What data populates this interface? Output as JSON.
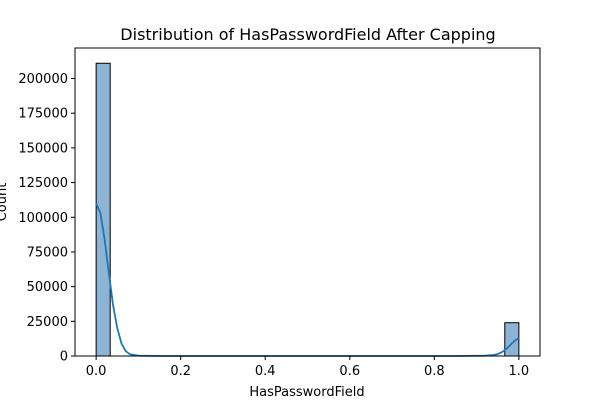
{
  "chart_data": {
    "type": "bar",
    "title": "Distribution of HasPasswordField After Capping",
    "xlabel": "HasPasswordField",
    "ylabel": "Count",
    "xlim": [
      -0.05,
      1.05
    ],
    "ylim": [
      0,
      222000
    ],
    "xticks": [
      0.0,
      0.2,
      0.4,
      0.6,
      0.8,
      1.0
    ],
    "xtick_labels": [
      "0.0",
      "0.2",
      "0.4",
      "0.6",
      "0.8",
      "1.0"
    ],
    "yticks": [
      0,
      25000,
      50000,
      75000,
      100000,
      125000,
      150000,
      175000,
      200000
    ],
    "ytick_labels": [
      "0",
      "25000",
      "50000",
      "75000",
      "100000",
      "125000",
      "150000",
      "175000",
      "200000"
    ],
    "bin_width": 0.0333,
    "bins": [
      {
        "x0": 0.0,
        "x1": 0.0333,
        "count": 211000
      },
      {
        "x0": 0.9667,
        "x1": 1.0,
        "count": 24000
      }
    ],
    "kde_line": {
      "x": [
        0.0,
        0.01,
        0.02,
        0.03,
        0.04,
        0.05,
        0.06,
        0.07,
        0.08,
        0.1,
        0.15,
        0.3,
        0.5,
        0.7,
        0.85,
        0.92,
        0.94,
        0.95,
        0.96,
        0.97,
        0.98,
        0.99,
        1.0
      ],
      "y": [
        110000,
        103000,
        84000,
        60000,
        37000,
        20000,
        9000,
        3500,
        1200,
        200,
        0,
        0,
        0,
        0,
        0,
        200,
        700,
        1400,
        2800,
        5000,
        8000,
        11000,
        13000
      ]
    },
    "bar_color": "#8db4d5",
    "bar_edge_color": "#000000",
    "line_color": "#1f77b4",
    "grid": false,
    "legend": "none"
  }
}
